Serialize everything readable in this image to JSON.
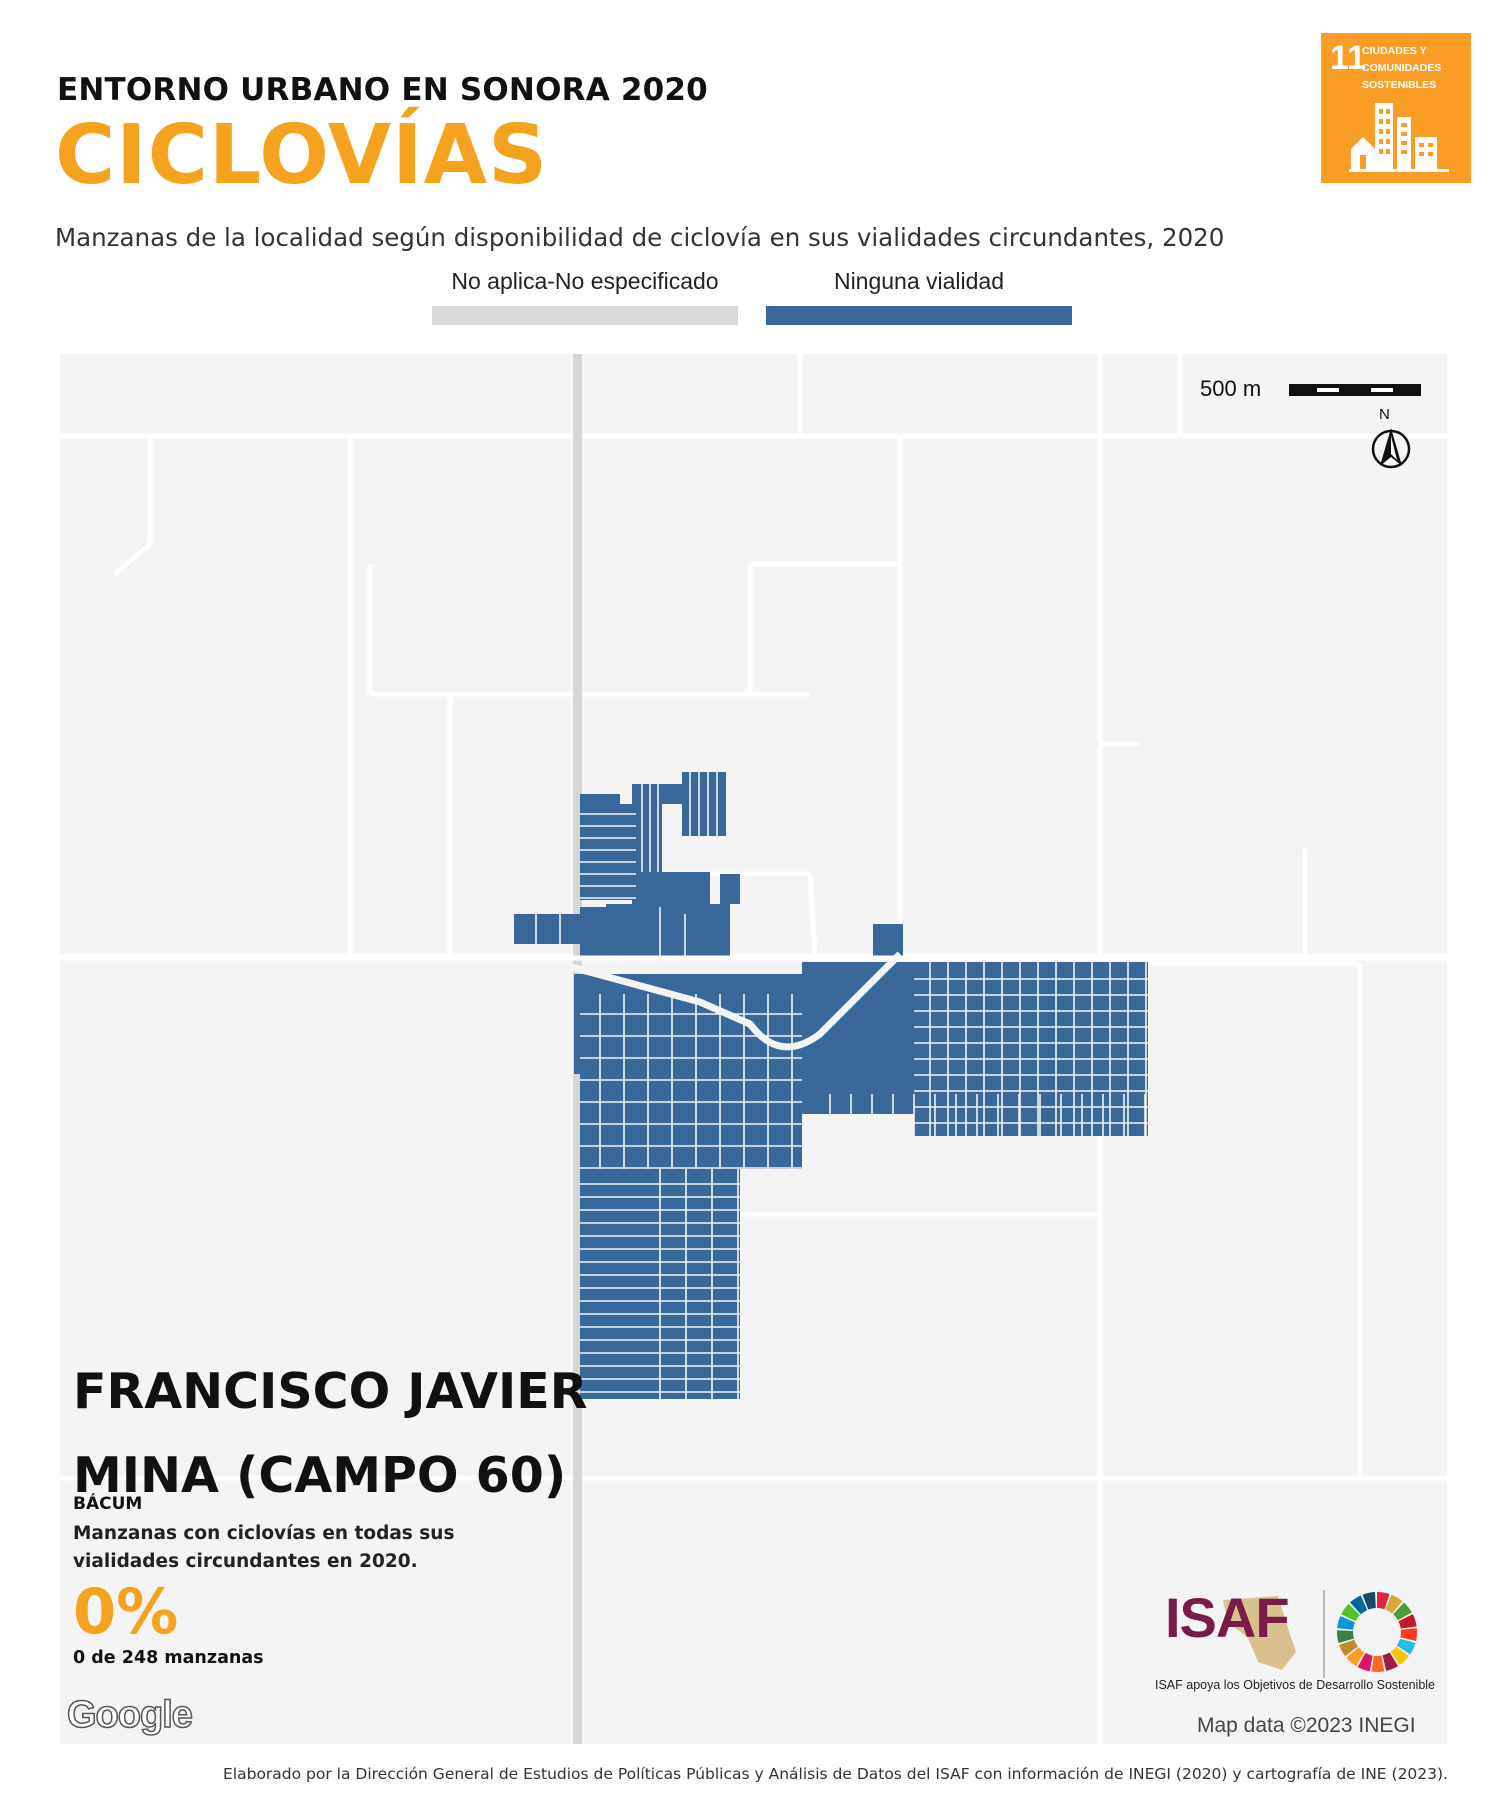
{
  "header": {
    "kicker": "ENTORNO URBANO EN SONORA 2020",
    "title": "CICLOVÍAS",
    "subtitle": "Manzanas de la localidad según disponibilidad de ciclovía en sus vialidades circundantes, 2020"
  },
  "legend": {
    "items": [
      {
        "label": "No aplica-No especificado",
        "color": "#d9d9d9"
      },
      {
        "label": "Ninguna vialidad",
        "color": "#38699a"
      }
    ]
  },
  "sdg_badge": {
    "number": "11",
    "text_lines": [
      "CIUDADES Y",
      "COMUNIDADES",
      "SOSTENIBLES"
    ],
    "color": "#f99d26"
  },
  "map": {
    "scale_label": "500 m",
    "north_label": "N",
    "block_color": "#38699a",
    "background_color": "#f4f4f4",
    "attribution_logo": "Google",
    "attribution": "Map data ©2023 INEGI"
  },
  "locality": {
    "name": "FRANCISCO JAVIER MINA (CAMPO 60)",
    "municipio": "BÁCUM",
    "stat_description": "Manzanas con ciclovías en todas sus vialidades circundantes en 2020.",
    "stat_value": "0%",
    "stat_count": "0 de 248 manzanas"
  },
  "isaf": {
    "logo_text": "ISAF",
    "tagline": "ISAF apoya los Objetivos de Desarrollo Sostenible",
    "accent": "#7a1b4a"
  },
  "footer": {
    "credit": "Elaborado por la Dirección General de Estudios de Políticas Públicas y Análisis de Datos del ISAF con información de INEGI (2020) y cartografía de INE (2023)."
  }
}
